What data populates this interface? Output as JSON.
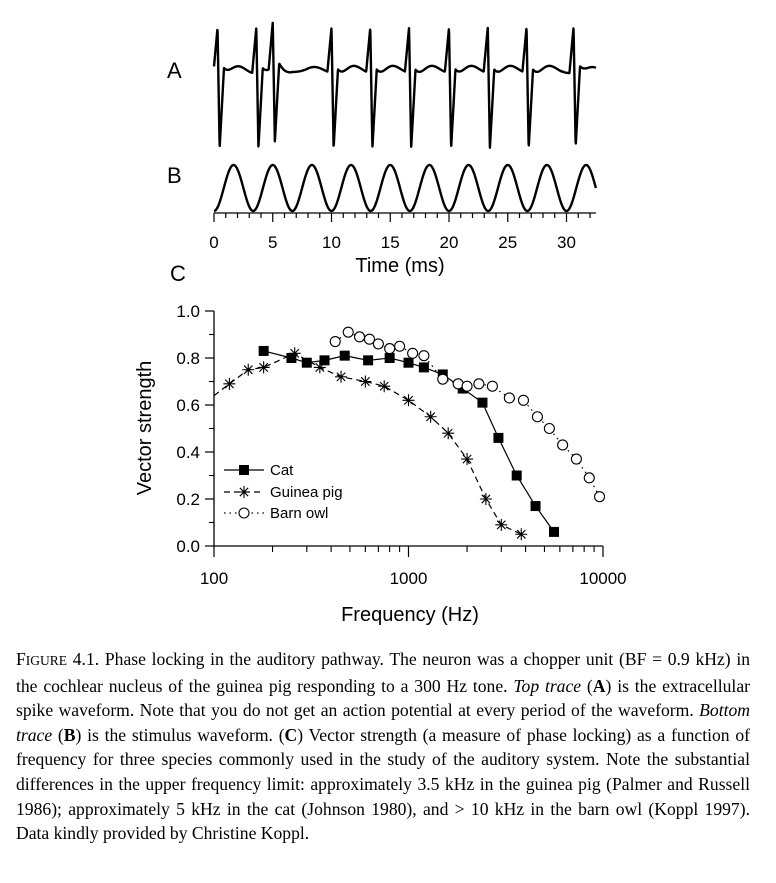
{
  "figure": {
    "panel_labels": {
      "a": "A",
      "b": "B",
      "c": "C"
    },
    "time_axis": {
      "title": "Time (ms)",
      "ticks": [
        "0",
        "5",
        "10",
        "15",
        "20",
        "25",
        "30"
      ]
    },
    "trace_a": {
      "description_role": "extracellular spike waveform",
      "spike_times_ms": [
        0.3,
        3.6,
        5.0,
        10.0,
        13.3,
        16.6,
        20.0,
        23.3,
        26.6,
        30.6
      ]
    },
    "trace_b": {
      "stimulus_frequency_hz": 300
    }
  },
  "chart_data": {
    "type": "line",
    "xlabel": "Frequency (Hz)",
    "ylabel": "Vector strength",
    "xscale": "log",
    "xlim": [
      100,
      10000
    ],
    "ylim": [
      0.0,
      1.0
    ],
    "x_tick_labels": [
      "100",
      "1000",
      "10000"
    ],
    "y_tick_labels": [
      "0.0",
      "0.2",
      "0.4",
      "0.6",
      "0.8",
      "1.0"
    ],
    "legend_position": "lower-left",
    "series": [
      {
        "name": "Cat",
        "marker": "filled-square",
        "line": "solid",
        "x": [
          180,
          250,
          300,
          370,
          470,
          620,
          800,
          1000,
          1200,
          1500,
          1900,
          2400,
          2900,
          3600,
          4500,
          5600
        ],
        "y": [
          0.83,
          0.8,
          0.78,
          0.79,
          0.81,
          0.79,
          0.8,
          0.78,
          0.76,
          0.73,
          0.67,
          0.61,
          0.46,
          0.3,
          0.17,
          0.06
        ]
      },
      {
        "name": "Guinea pig",
        "marker": "asterisk",
        "line": "dashed",
        "x": [
          120,
          150,
          180,
          260,
          350,
          450,
          600,
          750,
          1000,
          1300,
          1600,
          2000,
          2500,
          3000,
          3800
        ],
        "y": [
          0.69,
          0.75,
          0.76,
          0.82,
          0.76,
          0.72,
          0.7,
          0.68,
          0.62,
          0.55,
          0.48,
          0.37,
          0.2,
          0.09,
          0.05
        ]
      },
      {
        "name": "Barn owl",
        "marker": "open-circle",
        "line": "dotted",
        "x": [
          420,
          490,
          560,
          630,
          700,
          800,
          900,
          1050,
          1200,
          1500,
          1800,
          2000,
          2300,
          2700,
          3300,
          3900,
          4600,
          5300,
          6200,
          7300,
          8500,
          9600
        ],
        "y": [
          0.87,
          0.91,
          0.89,
          0.88,
          0.86,
          0.84,
          0.85,
          0.82,
          0.81,
          0.71,
          0.69,
          0.68,
          0.69,
          0.68,
          0.63,
          0.62,
          0.55,
          0.5,
          0.43,
          0.37,
          0.29,
          0.21
        ]
      }
    ]
  },
  "caption": {
    "figure_label_first": "F",
    "figure_label_rest": "IGURE",
    "figure_number": " 4.1. ",
    "part1": "Phase locking in the auditory pathway.  The neuron was a chopper unit (BF = 0.9 kHz) in the cochlear nucleus of the guinea pig responding to a 300 Hz tone.  ",
    "top_trace": "Top trace",
    "part2": " (",
    "label_a": "A",
    "part3": ") is the extracellular spike waveform.  Note that you do not get an action potential at every period of the waveform.  ",
    "bottom_trace": "Bottom trace",
    "part4": " (",
    "label_b": "B",
    "part5": ") is the stimulus waveform.  (",
    "label_c": "C",
    "part6": ") Vector strength (a measure of phase locking) as a function of frequency for three species commonly used in the study of the auditory system.  Note the substantial differences in the upper frequency limit: approximately 3.5 kHz in the guinea pig (Palmer and Russell 1986); approximately 5 kHz in the cat (Johnson 1980), and > 10 kHz in the barn owl (Koppl 1997).  Data kindly provided by Christine Koppl."
  }
}
